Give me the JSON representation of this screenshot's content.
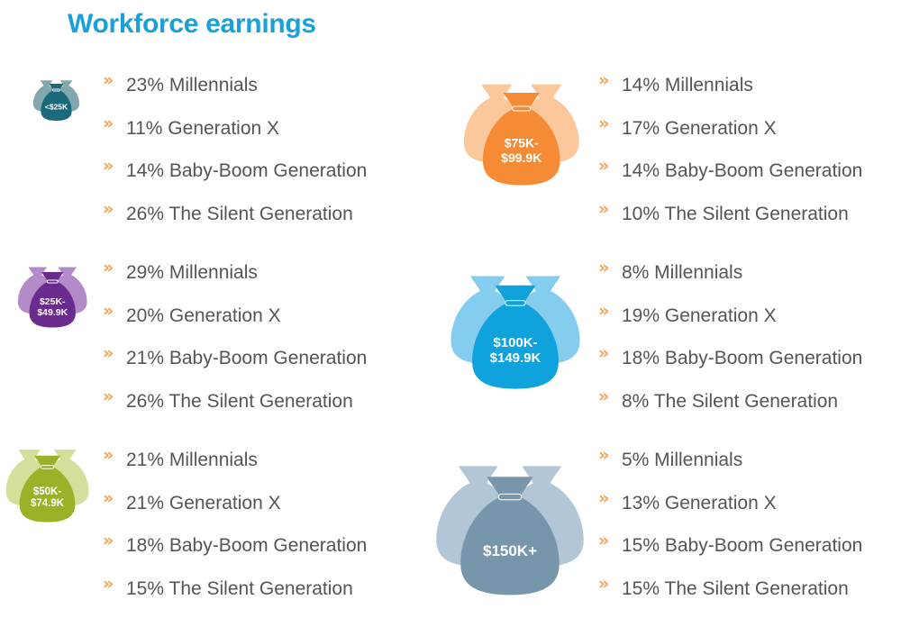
{
  "title": "Workforce earnings",
  "groups": [
    {
      "id": "under-25k",
      "bag_label": [
        "<$25K"
      ],
      "colors": {
        "side": "#82a7ae",
        "main": "#1b6a7b"
      },
      "items": [
        "23% Millennials",
        "11% Generation X",
        "14% Baby-Boom Generation",
        "26% The Silent Generation"
      ]
    },
    {
      "id": "25k-49k",
      "bag_label": [
        "$25K-",
        "$49.9K"
      ],
      "colors": {
        "side": "#b48bc9",
        "main": "#6a2b8e"
      },
      "items": [
        "29% Millennials",
        "20% Generation X",
        "21% Baby-Boom Generation",
        "26% The Silent Generation"
      ]
    },
    {
      "id": "50k-74k",
      "bag_label": [
        "$50K-",
        "$74.9K"
      ],
      "colors": {
        "side": "#d5df9b",
        "main": "#9bb128"
      },
      "items": [
        "21% Millennials",
        "21% Generation X",
        "18% Baby-Boom Generation",
        "15% The Silent Generation"
      ]
    },
    {
      "id": "75k-99k",
      "bag_label": [
        "$75K-",
        "$99.9K"
      ],
      "colors": {
        "side": "#fcc79b",
        "main": "#f68b36"
      },
      "items": [
        "14% Millennials",
        "17% Generation X",
        "14% Baby-Boom Generation",
        "10% The Silent Generation"
      ]
    },
    {
      "id": "100k-149k",
      "bag_label": [
        "$100K-",
        "$149.9K"
      ],
      "colors": {
        "side": "#85cdef",
        "main": "#0fa2dc"
      },
      "items": [
        "8% Millennials",
        "19% Generation X",
        "18% Baby-Boom Generation",
        "8% The Silent Generation"
      ]
    },
    {
      "id": "150k-plus",
      "bag_label": [
        "$150K+"
      ],
      "colors": {
        "side": "#b3c6d6",
        "main": "#7795ab"
      },
      "items": [
        "5% Millennials",
        "13% Generation X",
        "15% Baby-Boom Generation",
        "15% The Silent Generation"
      ]
    }
  ]
}
